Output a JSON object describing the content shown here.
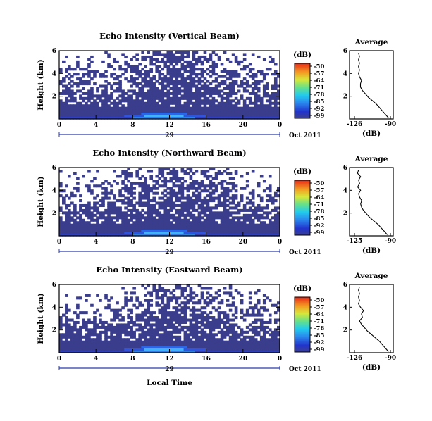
{
  "chart_data": [
    {
      "type": "heatmap",
      "title": "Echo Intensity (Vertical Beam)",
      "ylabel": "Height (km)",
      "xlabel": "",
      "xlim": [
        0,
        24
      ],
      "ylim": [
        0,
        6
      ],
      "xticks": [
        "0",
        "4",
        "8",
        "12",
        "16",
        "20",
        "0"
      ],
      "yticks": [
        "2",
        "4",
        "6"
      ],
      "date_day": "29",
      "date_month_year": "Oct 2011",
      "colorbar": {
        "unit": "(dB)",
        "ticks": [
          "-50",
          "-57",
          "-64",
          "-71",
          "-78",
          "-85",
          "-92",
          "-99"
        ]
      },
      "profile": {
        "title": "Average",
        "xlabel": "(dB)",
        "xticks": [
          "-126",
          "-90"
        ],
        "yticks": [
          "2",
          "4",
          "6"
        ],
        "x": [
          -92,
          -95,
          -98,
          -101,
          -104,
          -108,
          -112,
          -115,
          -118,
          -120,
          -120,
          -119,
          -121,
          -122,
          -121,
          -122,
          -121,
          -122,
          -121,
          -122
        ],
        "y": [
          0.1,
          0.4,
          0.7,
          1.0,
          1.3,
          1.6,
          1.9,
          2.2,
          2.5,
          2.8,
          3.1,
          3.4,
          3.7,
          4.0,
          4.3,
          4.6,
          4.9,
          5.2,
          5.5,
          5.8
        ]
      }
    },
    {
      "type": "heatmap",
      "title": "Echo Intensity (Northward Beam)",
      "ylabel": "Height (km)",
      "xlabel": "",
      "xlim": [
        0,
        24
      ],
      "ylim": [
        0,
        6
      ],
      "xticks": [
        "0",
        "4",
        "8",
        "12",
        "16",
        "20",
        "0"
      ],
      "yticks": [
        "2",
        "4",
        "6"
      ],
      "date_day": "29",
      "date_month_year": "Oct 2011",
      "colorbar": {
        "unit": "(dB)",
        "ticks": [
          "-50",
          "-57",
          "-64",
          "-71",
          "-78",
          "-85",
          "-92",
          "-99"
        ]
      },
      "profile": {
        "title": "Average",
        "xlabel": "(dB)",
        "xticks": [
          "-125",
          "-90"
        ],
        "yticks": [
          "2",
          "4",
          "6"
        ],
        "x": [
          -93,
          -96,
          -99,
          -102,
          -106,
          -110,
          -113,
          -116,
          -118,
          -119,
          -118,
          -120,
          -121,
          -119,
          -122,
          -120,
          -121,
          -119,
          -122,
          -121
        ],
        "y": [
          0.1,
          0.4,
          0.7,
          1.0,
          1.3,
          1.6,
          1.9,
          2.2,
          2.5,
          2.8,
          3.1,
          3.4,
          3.7,
          4.0,
          4.3,
          4.6,
          4.9,
          5.2,
          5.5,
          5.8
        ]
      }
    },
    {
      "type": "heatmap",
      "title": "Echo Intensity (Eastward Beam)",
      "ylabel": "Height (km)",
      "xlabel": "Local Time",
      "xlim": [
        0,
        24
      ],
      "ylim": [
        0,
        6
      ],
      "xticks": [
        "0",
        "4",
        "8",
        "12",
        "16",
        "20",
        "0"
      ],
      "yticks": [
        "2",
        "4",
        "6"
      ],
      "date_day": "29",
      "date_month_year": "Oct 2011",
      "colorbar": {
        "unit": "(dB)",
        "ticks": [
          "-50",
          "-57",
          "-64",
          "-71",
          "-78",
          "-85",
          "-92",
          "-99"
        ]
      },
      "profile": {
        "title": "Average",
        "xlabel": "(dB)",
        "xticks": [
          "-126",
          "-90"
        ],
        "yticks": [
          "2",
          "4",
          "6"
        ],
        "x": [
          -92,
          -95,
          -98,
          -101,
          -105,
          -109,
          -113,
          -116,
          -119,
          -121,
          -118,
          -119,
          -117,
          -120,
          -122,
          -121,
          -122,
          -121,
          -122,
          -121
        ],
        "y": [
          0.1,
          0.4,
          0.7,
          1.0,
          1.3,
          1.6,
          1.9,
          2.2,
          2.5,
          2.8,
          3.1,
          3.4,
          3.7,
          4.0,
          4.3,
          4.6,
          4.9,
          5.2,
          5.5,
          5.8
        ]
      }
    }
  ]
}
